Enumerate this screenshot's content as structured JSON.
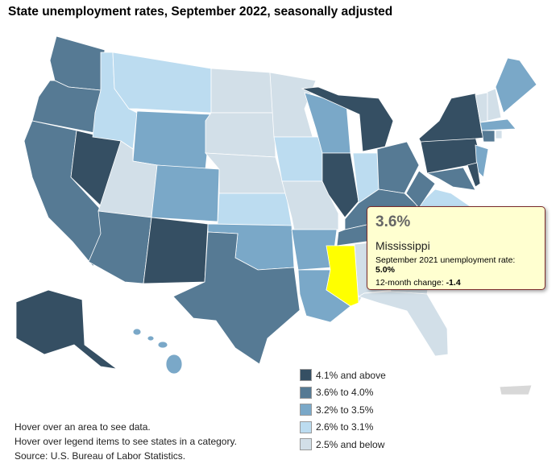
{
  "title": "State unemployment rates, September 2022, seasonally adjusted",
  "legend": [
    {
      "label": "4.1% and above",
      "color": "#354f63"
    },
    {
      "label": "3.6% to 4.0%",
      "color": "#567a94"
    },
    {
      "label": "3.2% to 3.5%",
      "color": "#7aa8c8"
    },
    {
      "label": "2.6% to 3.1%",
      "color": "#bcdcf0"
    },
    {
      "label": "2.5% and below",
      "color": "#d2dfe8"
    }
  ],
  "highlight_color": "#ffff00",
  "states": [
    {
      "abbr": "WA",
      "cat": 1
    },
    {
      "abbr": "OR",
      "cat": 1
    },
    {
      "abbr": "CA",
      "cat": 1
    },
    {
      "abbr": "NV",
      "cat": 0
    },
    {
      "abbr": "ID",
      "cat": 3
    },
    {
      "abbr": "MT",
      "cat": 3
    },
    {
      "abbr": "WY",
      "cat": 2
    },
    {
      "abbr": "UT",
      "cat": 4
    },
    {
      "abbr": "CO",
      "cat": 2
    },
    {
      "abbr": "AZ",
      "cat": 1
    },
    {
      "abbr": "NM",
      "cat": 0
    },
    {
      "abbr": "ND",
      "cat": 4
    },
    {
      "abbr": "SD",
      "cat": 4
    },
    {
      "abbr": "NE",
      "cat": 4
    },
    {
      "abbr": "KS",
      "cat": 3
    },
    {
      "abbr": "OK",
      "cat": 2
    },
    {
      "abbr": "TX",
      "cat": 1
    },
    {
      "abbr": "MN",
      "cat": 4
    },
    {
      "abbr": "IA",
      "cat": 3
    },
    {
      "abbr": "MO",
      "cat": 4
    },
    {
      "abbr": "AR",
      "cat": 2
    },
    {
      "abbr": "LA",
      "cat": 2
    },
    {
      "abbr": "WI",
      "cat": 2
    },
    {
      "abbr": "IL",
      "cat": 0
    },
    {
      "abbr": "MI",
      "cat": 0
    },
    {
      "abbr": "IN",
      "cat": 3
    },
    {
      "abbr": "OH",
      "cat": 1
    },
    {
      "abbr": "KY",
      "cat": 1
    },
    {
      "abbr": "TN",
      "cat": 1
    },
    {
      "abbr": "AL",
      "cat": 4
    },
    {
      "abbr": "GA",
      "cat": 4
    },
    {
      "abbr": "FL",
      "cat": 4
    },
    {
      "abbr": "SC",
      "cat": 3
    },
    {
      "abbr": "NC",
      "cat": 1
    },
    {
      "abbr": "VA",
      "cat": 3
    },
    {
      "abbr": "WV",
      "cat": 1
    },
    {
      "abbr": "PA",
      "cat": 0
    },
    {
      "abbr": "NY",
      "cat": 0
    },
    {
      "abbr": "VT",
      "cat": 4
    },
    {
      "abbr": "NH",
      "cat": 4
    },
    {
      "abbr": "ME",
      "cat": 2
    },
    {
      "abbr": "MA",
      "cat": 2
    },
    {
      "abbr": "CT",
      "cat": 1
    },
    {
      "abbr": "RI",
      "cat": 4
    },
    {
      "abbr": "NJ",
      "cat": 2
    },
    {
      "abbr": "MD",
      "cat": 1
    },
    {
      "abbr": "DE",
      "cat": 0
    },
    {
      "abbr": "AK",
      "cat": 0
    },
    {
      "abbr": "HI",
      "cat": 2
    },
    {
      "abbr": "PR",
      "cat": -1
    },
    {
      "abbr": "MS",
      "cat": 1,
      "selected": true
    }
  ],
  "tooltip": {
    "value": "3.6%",
    "state": "Mississippi",
    "prev_label": "September 2021 unemployment rate: ",
    "prev_value": "5.0%",
    "change_label": "12-month change: ",
    "change_value": "-1.4"
  },
  "footer": [
    "Hover over an area to see data.",
    "Hover over legend items to see states in a category.",
    "Source: U.S. Bureau of Labor Statistics."
  ]
}
